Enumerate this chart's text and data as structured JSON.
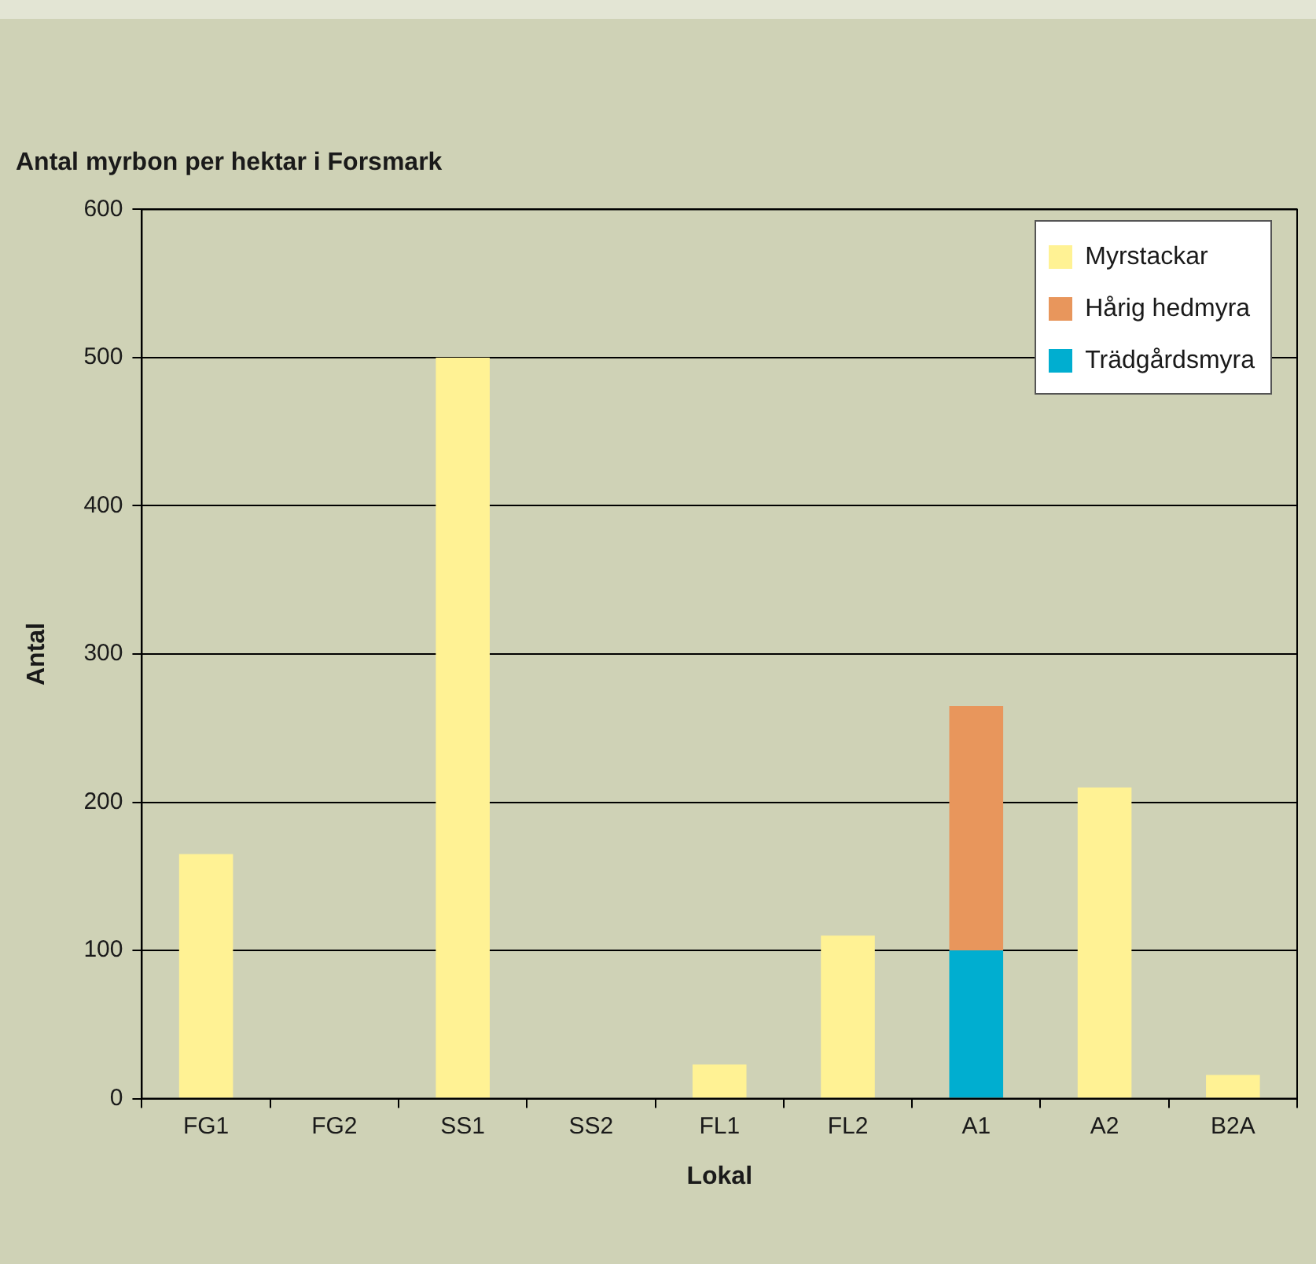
{
  "chart_data": {
    "type": "bar",
    "title": "Antal myrbon per hektar i Forsmark",
    "xlabel": "Lokal",
    "ylabel": "Antal",
    "categories": [
      "FG1",
      "FG2",
      "SS1",
      "SS2",
      "FL1",
      "FL2",
      "A1",
      "A2",
      "B2A"
    ],
    "series": [
      {
        "name": "Trädgårdsmyra",
        "color": "#00aed0",
        "values": [
          null,
          null,
          null,
          null,
          null,
          null,
          100,
          null,
          null
        ]
      },
      {
        "name": "Hårig hedmyra",
        "color": "#e8965c",
        "values": [
          null,
          null,
          null,
          null,
          null,
          null,
          165,
          null,
          null
        ]
      },
      {
        "name": "Myrstackar",
        "color": "#fff294",
        "values": [
          165,
          0,
          500,
          0,
          23,
          110,
          null,
          210,
          16
        ]
      }
    ],
    "stacked": true,
    "ylim": [
      0,
      600
    ],
    "yticks": [
      0,
      100,
      200,
      300,
      400,
      500,
      600
    ],
    "grid": "y",
    "legend": "top right"
  }
}
